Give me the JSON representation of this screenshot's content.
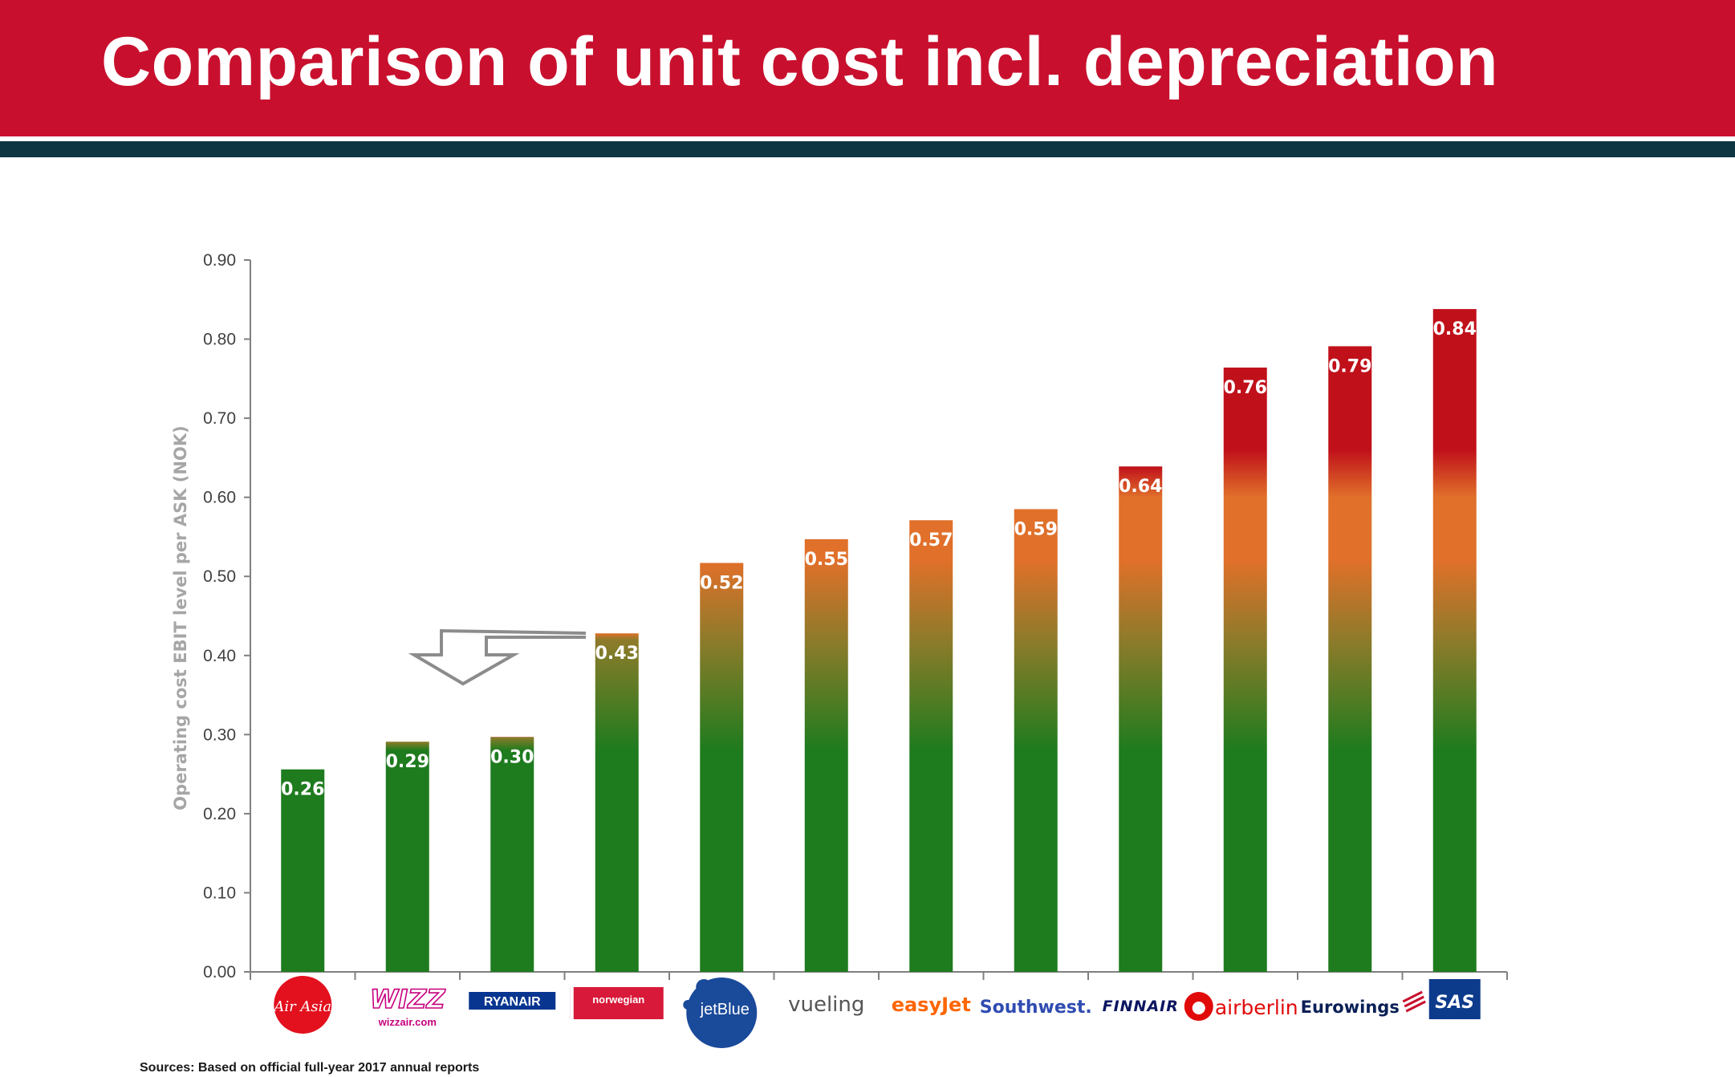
{
  "header": {
    "title": "Comparison of unit cost incl. depreciation"
  },
  "footer": {
    "sources": "Sources: Based on official full-year 2017 annual reports"
  },
  "colors": {
    "header_red": "#c8102e",
    "stripe_dark": "#0e3642",
    "bar_green": "#1e7b1e",
    "bar_olive": "#8e7b2a",
    "bar_orange": "#e0702a",
    "bar_red": "#c0101a",
    "axis_grey": "#808080"
  },
  "chart_data": {
    "type": "bar",
    "title": "",
    "xlabel": "",
    "ylabel": "Operating cost EBIT level per ASK (NOK)",
    "ylim": [
      0,
      0.9
    ],
    "yticks": [
      "0.00",
      "0.10",
      "0.20",
      "0.30",
      "0.40",
      "0.50",
      "0.60",
      "0.70",
      "0.80",
      "0.90"
    ],
    "grid": false,
    "categories": [
      "AirAsia",
      "Wizz",
      "Ryanair",
      "Norwegian",
      "jetBlue",
      "vueling",
      "easyJet",
      "Southwest",
      "Finnair",
      "airberlin",
      "Eurowings",
      "SAS"
    ],
    "values": [
      0.256,
      0.291,
      0.297,
      0.428,
      0.517,
      0.547,
      0.571,
      0.585,
      0.639,
      0.764,
      0.791,
      0.838
    ],
    "data_labels": [
      "0.26",
      "0.29",
      "0.30",
      "0.43",
      "0.52",
      "0.55",
      "0.57",
      "0.59",
      "0.64",
      "0.76",
      "0.79",
      "0.84"
    ],
    "logos": [
      {
        "main": "Air Asia",
        "sub": ""
      },
      {
        "main": "WIZZ",
        "sub": "wizzair.com"
      },
      {
        "main": "RYANAIR",
        "sub": ""
      },
      {
        "main": "norwegian",
        "sub": ""
      },
      {
        "main": "jetBlue",
        "sub": ""
      },
      {
        "main": "vueling",
        "sub": ""
      },
      {
        "main": "easyJet",
        "sub": ""
      },
      {
        "main": "Southwest.",
        "sub": ""
      },
      {
        "main": "FINNAIR",
        "sub": ""
      },
      {
        "main": "airberlin",
        "sub": ""
      },
      {
        "main": "Eurowings",
        "sub": ""
      },
      {
        "main": "SAS",
        "sub": ""
      }
    ],
    "annotation": "arrow-down"
  }
}
